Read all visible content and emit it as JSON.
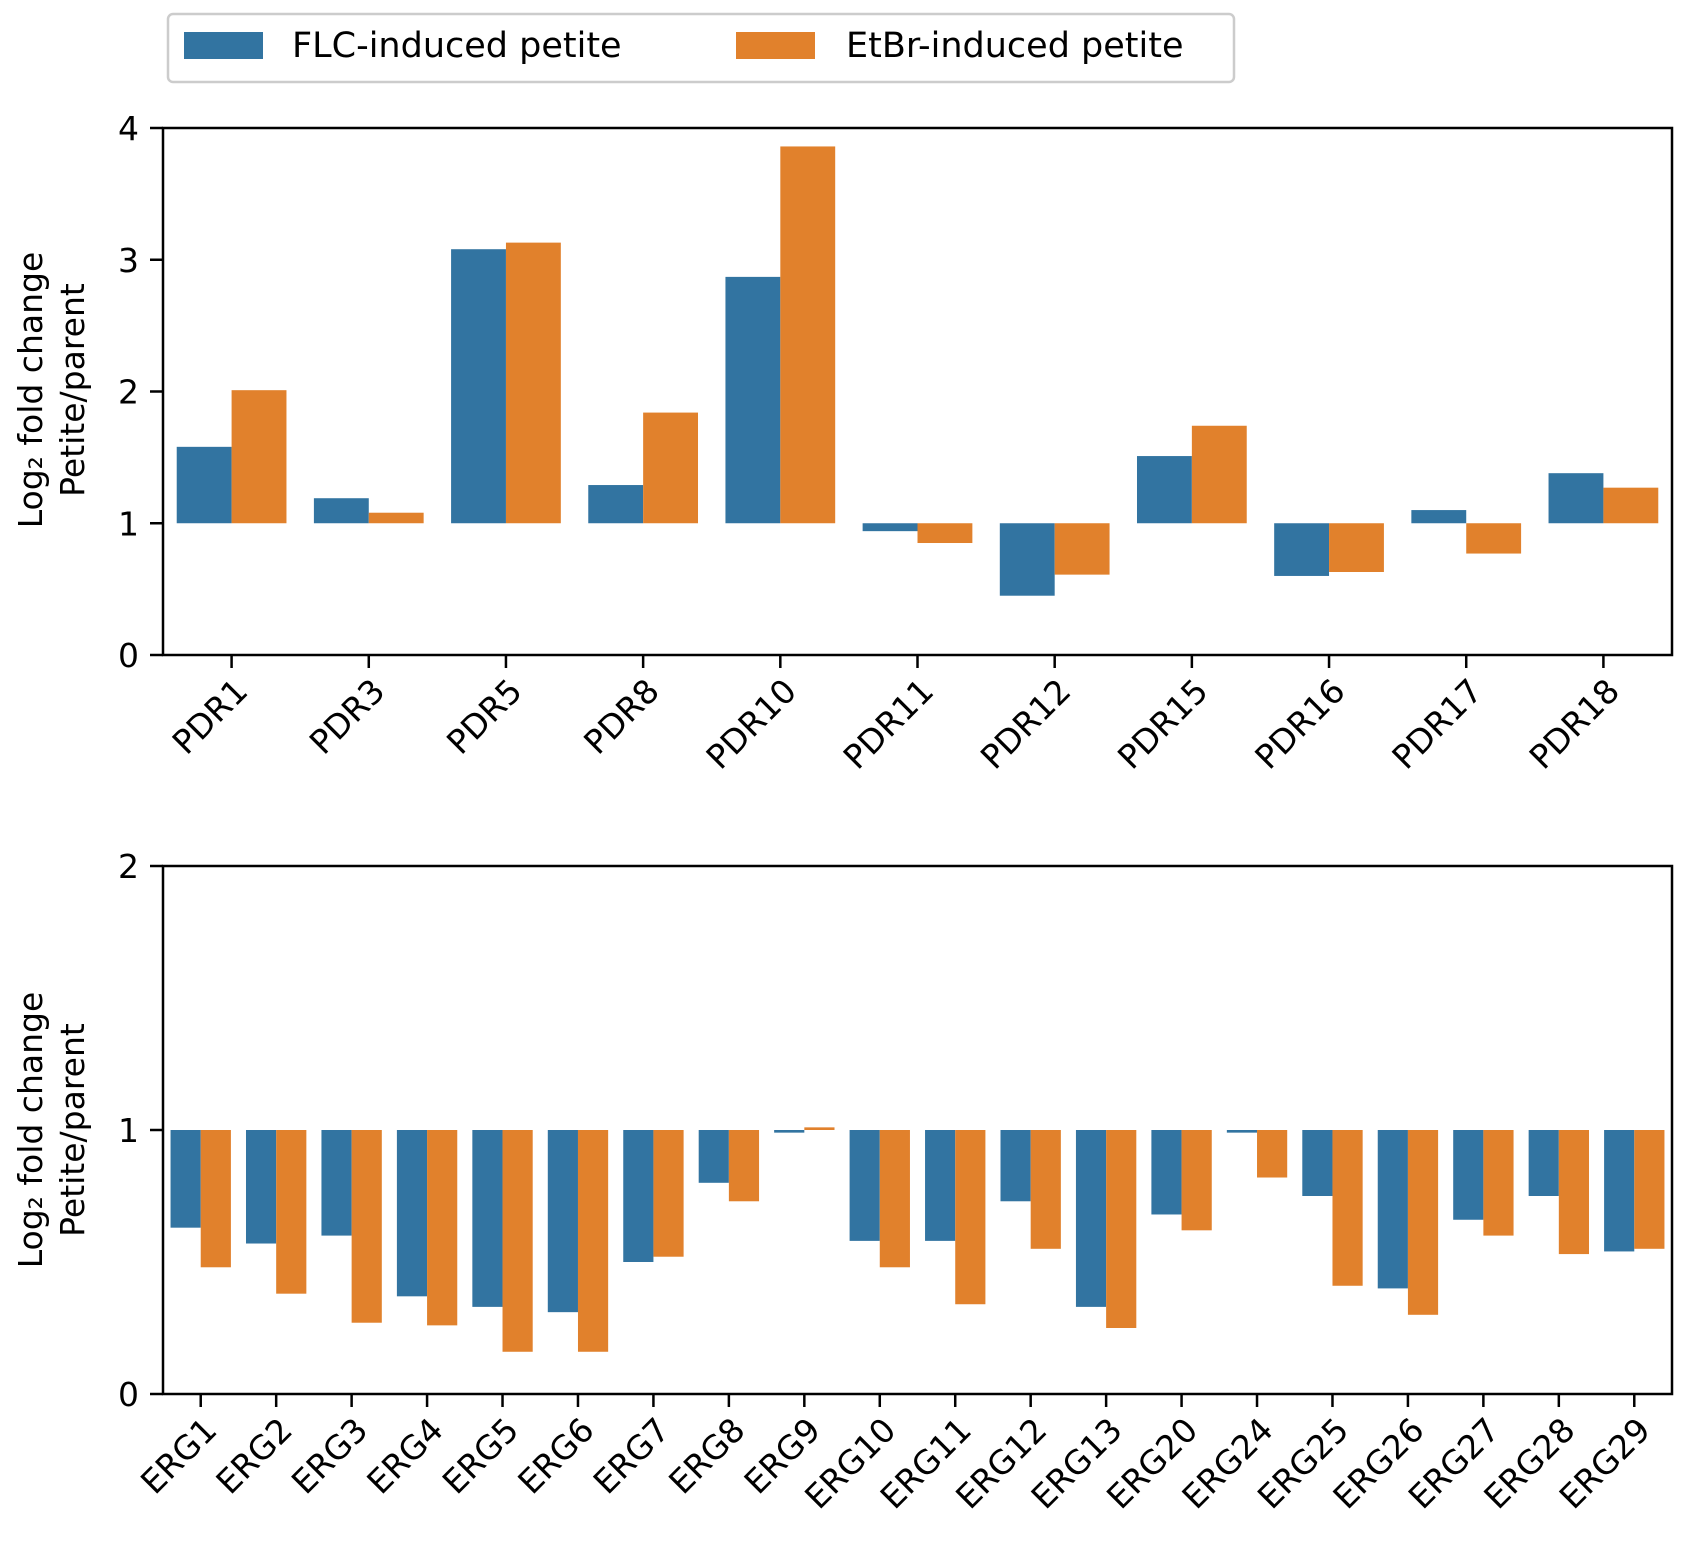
{
  "legend": {
    "location": "upper-left above charts",
    "entries": [
      {
        "label": "FLC-induced petite",
        "color": "#3274a1"
      },
      {
        "label": "EtBr-induced petite",
        "color": "#e1812c"
      }
    ]
  },
  "chart_data": [
    {
      "type": "bar",
      "ylabel_line1": "Log₂ fold change",
      "ylabel_line2": "Petite/parent",
      "ylim": [
        0,
        4
      ],
      "yticks": [
        "0",
        "1",
        "2",
        "3",
        "4"
      ],
      "baseline": 1,
      "categories": [
        "PDR1",
        "PDR3",
        "PDR5",
        "PDR8",
        "PDR10",
        "PDR11",
        "PDR12",
        "PDR15",
        "PDR16",
        "PDR17",
        "PDR18"
      ],
      "series": [
        {
          "name": "FLC-induced petite",
          "values": [
            1.58,
            1.19,
            3.08,
            1.29,
            2.87,
            0.94,
            0.45,
            1.51,
            0.6,
            1.1,
            1.38
          ]
        },
        {
          "name": "EtBr-induced petite",
          "values": [
            2.01,
            1.08,
            3.13,
            1.84,
            3.86,
            0.85,
            0.61,
            1.74,
            0.63,
            0.77,
            1.27
          ]
        }
      ]
    },
    {
      "type": "bar",
      "ylabel_line1": "Log₂ fold change",
      "ylabel_line2": "Petite/parent",
      "ylim": [
        0,
        2
      ],
      "yticks": [
        "0",
        "1",
        "2"
      ],
      "baseline": 1,
      "categories": [
        "ERG1",
        "ERG2",
        "ERG3",
        "ERG4",
        "ERG5",
        "ERG6",
        "ERG7",
        "ERG8",
        "ERG9",
        "ERG10",
        "ERG11",
        "ERG12",
        "ERG13",
        "ERG20",
        "ERG24",
        "ERG25",
        "ERG26",
        "ERG27",
        "ERG28",
        "ERG29"
      ],
      "series": [
        {
          "name": "FLC-induced petite",
          "values": [
            0.63,
            0.57,
            0.6,
            0.37,
            0.33,
            0.31,
            0.5,
            0.8,
            0.99,
            0.58,
            0.58,
            0.73,
            0.33,
            0.68,
            0.99,
            0.75,
            0.4,
            0.66,
            0.75,
            0.54
          ]
        },
        {
          "name": "EtBr-induced petite",
          "values": [
            0.48,
            0.38,
            0.27,
            0.26,
            0.16,
            0.16,
            0.52,
            0.73,
            1.01,
            0.48,
            0.34,
            0.55,
            0.25,
            0.62,
            0.82,
            0.41,
            0.3,
            0.6,
            0.53,
            0.55
          ]
        }
      ]
    }
  ]
}
